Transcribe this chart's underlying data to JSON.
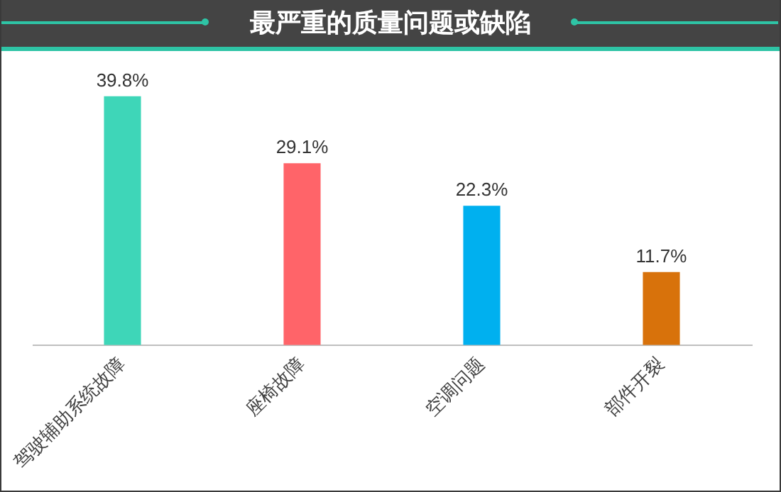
{
  "chart_data": {
    "type": "bar",
    "title": "最严重的质量问题或缺陷",
    "categories": [
      "驾驶辅助系统故障",
      "座椅故障",
      "空调问题",
      "部件开裂"
    ],
    "values": [
      39.8,
      29.1,
      22.3,
      11.7
    ],
    "colors": [
      "#3ed6b8",
      "#ff6469",
      "#00b0ef",
      "#d8720b"
    ],
    "value_labels": [
      "39.8%",
      "29.1%",
      "22.3%",
      "11.7%"
    ]
  }
}
